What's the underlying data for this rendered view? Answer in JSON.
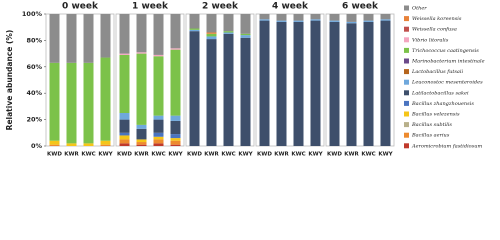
{
  "chart_data": [
    {
      "type": "bar",
      "stacked": true,
      "title": "0 week",
      "y_label": "Relative abundance (%)",
      "categories": [
        "KWD",
        "KWR",
        "KWC",
        "KWY"
      ],
      "ylim": [
        0,
        100
      ],
      "yticks": [
        {
          "value": 0,
          "label": "0%"
        },
        {
          "value": 20,
          "label": "20%"
        },
        {
          "value": 40,
          "label": "40%"
        },
        {
          "value": 60,
          "label": "60%"
        },
        {
          "value": 80,
          "label": "80%"
        },
        {
          "value": 100,
          "label": "100%"
        }
      ],
      "series": [
        {
          "name": "Other",
          "color": "#8c8c8c",
          "values": [
            37,
            37,
            37,
            33
          ]
        },
        {
          "name": "Weissella koreensis",
          "color": "#e8823a",
          "values": [
            0,
            0,
            0,
            0
          ]
        },
        {
          "name": "Weissella confusa",
          "color": "#c0504d",
          "values": [
            0,
            0,
            0,
            0
          ]
        },
        {
          "name": "Vibrio litoralis",
          "color": "#f4a6c0",
          "values": [
            0,
            0,
            0,
            0
          ]
        },
        {
          "name": "Trichococcus caatingensis",
          "color": "#7cc24a",
          "values": [
            59,
            61,
            61,
            63
          ]
        },
        {
          "name": "Marinobacterium intestinale",
          "color": "#6b4a8a",
          "values": [
            0,
            0,
            0,
            0
          ]
        },
        {
          "name": "Lactobacillus futsaii",
          "color": "#b5651d",
          "values": [
            0,
            0,
            0,
            0
          ]
        },
        {
          "name": "Leuconostoc mesenteroides",
          "color": "#6fa8dc",
          "values": [
            0,
            0,
            0,
            0
          ]
        },
        {
          "name": "Latilactobacillus sakei",
          "color": "#3e4f6b",
          "values": [
            0,
            0,
            0,
            0
          ]
        },
        {
          "name": "Bacillus zhangzhouensis",
          "color": "#4a74c0",
          "values": [
            0,
            0,
            0,
            0
          ]
        },
        {
          "name": "Bacillus velezensis",
          "color": "#f5c518",
          "values": [
            3,
            2,
            2,
            3
          ]
        },
        {
          "name": "Bacillus subtilis",
          "color": "#b8b08a",
          "values": [
            0,
            0,
            0,
            0
          ]
        },
        {
          "name": "Bacillus aerius",
          "color": "#ed8a2e",
          "values": [
            1,
            0,
            0,
            1
          ]
        },
        {
          "name": "Aeromicrobium fastidiosum",
          "color": "#c0392b",
          "values": [
            0,
            0,
            0,
            0
          ]
        }
      ]
    },
    {
      "type": "bar",
      "stacked": true,
      "title": "1 week",
      "categories": [
        "KWD",
        "KWR",
        "KWC",
        "KWY"
      ],
      "ylim": [
        0,
        100
      ],
      "series": [
        {
          "values": [
            30,
            29,
            31,
            26
          ]
        },
        {
          "values": [
            0,
            0,
            0,
            0
          ]
        },
        {
          "values": [
            0,
            0,
            0,
            0
          ]
        },
        {
          "values": [
            1,
            1,
            1,
            1
          ]
        },
        {
          "values": [
            44,
            54,
            45,
            50
          ]
        },
        {
          "values": [
            0,
            0,
            0,
            0
          ]
        },
        {
          "values": [
            0,
            0,
            0,
            0
          ]
        },
        {
          "values": [
            5,
            3,
            3,
            4
          ]
        },
        {
          "values": [
            10,
            8,
            10,
            10
          ]
        },
        {
          "values": [
            2,
            0,
            3,
            3
          ]
        },
        {
          "values": [
            3,
            2,
            2,
            2
          ]
        },
        {
          "values": [
            0,
            0,
            0,
            0
          ]
        },
        {
          "values": [
            3,
            2,
            3,
            3
          ]
        },
        {
          "values": [
            2,
            1,
            2,
            1
          ]
        }
      ]
    },
    {
      "type": "bar",
      "stacked": true,
      "title": "2 week",
      "categories": [
        "KWD",
        "KWR",
        "KWC",
        "KWY"
      ],
      "ylim": [
        0,
        100
      ],
      "series": [
        {
          "values": [
            11,
            14,
            13,
            15
          ]
        },
        {
          "values": [
            0,
            1,
            0,
            0
          ]
        },
        {
          "values": [
            0,
            0,
            0,
            0
          ]
        },
        {
          "values": [
            0,
            0,
            0,
            0
          ]
        },
        {
          "values": [
            1,
            2,
            1,
            1
          ]
        },
        {
          "values": [
            0,
            0,
            0,
            0
          ]
        },
        {
          "values": [
            0,
            0,
            0,
            0
          ]
        },
        {
          "values": [
            1,
            2,
            1,
            2
          ]
        },
        {
          "values": [
            87,
            81,
            85,
            82
          ]
        },
        {
          "values": [
            0,
            0,
            0,
            0
          ]
        },
        {
          "values": [
            0,
            0,
            0,
            0
          ]
        },
        {
          "values": [
            0,
            0,
            0,
            0
          ]
        },
        {
          "values": [
            0,
            0,
            0,
            0
          ]
        },
        {
          "values": [
            0,
            0,
            0,
            0
          ]
        }
      ]
    },
    {
      "type": "bar",
      "stacked": true,
      "title": "4 week",
      "categories": [
        "KWD",
        "KWR",
        "KWC",
        "KWY"
      ],
      "ylim": [
        0,
        100
      ],
      "series": [
        {
          "values": [
            4,
            5,
            5,
            4
          ]
        },
        {
          "values": [
            0,
            0,
            0,
            0
          ]
        },
        {
          "values": [
            0,
            0,
            0,
            0
          ]
        },
        {
          "values": [
            0,
            0,
            0,
            0
          ]
        },
        {
          "values": [
            0,
            0,
            0,
            0
          ]
        },
        {
          "values": [
            0,
            0,
            0,
            0
          ]
        },
        {
          "values": [
            0,
            0,
            0,
            0
          ]
        },
        {
          "values": [
            1,
            1,
            1,
            1
          ]
        },
        {
          "values": [
            95,
            94,
            94,
            95
          ]
        },
        {
          "values": [
            0,
            0,
            0,
            0
          ]
        },
        {
          "values": [
            0,
            0,
            0,
            0
          ]
        },
        {
          "values": [
            0,
            0,
            0,
            0
          ]
        },
        {
          "values": [
            0,
            0,
            0,
            0
          ]
        },
        {
          "values": [
            0,
            0,
            0,
            0
          ]
        }
      ]
    },
    {
      "type": "bar",
      "stacked": true,
      "title": "6 week",
      "categories": [
        "KWD",
        "KWR",
        "KWC",
        "KWY"
      ],
      "ylim": [
        0,
        100
      ],
      "series": [
        {
          "values": [
            5,
            6,
            5,
            4
          ]
        },
        {
          "values": [
            0,
            0,
            0,
            0
          ]
        },
        {
          "values": [
            0,
            0,
            0,
            0
          ]
        },
        {
          "values": [
            0,
            0,
            0,
            0
          ]
        },
        {
          "values": [
            0,
            0,
            0,
            0
          ]
        },
        {
          "values": [
            0,
            0,
            0,
            0
          ]
        },
        {
          "values": [
            0,
            0,
            0,
            0
          ]
        },
        {
          "values": [
            1,
            1,
            1,
            1
          ]
        },
        {
          "values": [
            94,
            93,
            94,
            95
          ]
        },
        {
          "values": [
            0,
            0,
            0,
            0
          ]
        },
        {
          "values": [
            0,
            0,
            0,
            0
          ]
        },
        {
          "values": [
            0,
            0,
            0,
            0
          ]
        },
        {
          "values": [
            0,
            0,
            0,
            0
          ]
        },
        {
          "values": [
            0,
            0,
            0,
            0
          ]
        }
      ]
    }
  ]
}
